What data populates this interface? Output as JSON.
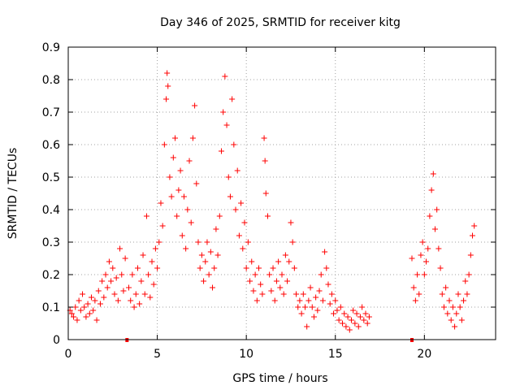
{
  "chart_data": {
    "type": "scatter",
    "title": "Day 346 of 2025, SRMTID for receiver kitg",
    "xlabel": "GPS time / hours",
    "ylabel": "SRMTID / TECUs",
    "xlim": [
      0,
      24
    ],
    "ylim": [
      0,
      0.9
    ],
    "xticks": [
      0,
      5,
      10,
      15,
      20
    ],
    "xtick_labels": [
      "0",
      "5",
      "10",
      "15",
      "20"
    ],
    "yticks": [
      0,
      0.1,
      0.2,
      0.3,
      0.4,
      0.5,
      0.6,
      0.7,
      0.8,
      0.9
    ],
    "ytick_labels": [
      "0",
      "0.1",
      "0.2",
      "0.3",
      "0.4",
      "0.5",
      "0.6",
      "0.7",
      "0.8",
      "0.9"
    ],
    "grid": true,
    "marker": "+",
    "color": "#ff0000",
    "gap_markers_x": [
      3.3,
      19.3
    ],
    "series": [
      {
        "name": "SRMTID",
        "points": [
          [
            0.1,
            0.09
          ],
          [
            0.2,
            0.08
          ],
          [
            0.3,
            0.07
          ],
          [
            0.4,
            0.1
          ],
          [
            0.5,
            0.06
          ],
          [
            0.6,
            0.12
          ],
          [
            0.7,
            0.09
          ],
          [
            0.8,
            0.14
          ],
          [
            0.9,
            0.1
          ],
          [
            1.0,
            0.07
          ],
          [
            1.1,
            0.11
          ],
          [
            1.2,
            0.08
          ],
          [
            1.3,
            0.13
          ],
          [
            1.4,
            0.09
          ],
          [
            1.5,
            0.12
          ],
          [
            1.6,
            0.06
          ],
          [
            1.7,
            0.15
          ],
          [
            1.8,
            0.11
          ],
          [
            1.9,
            0.18
          ],
          [
            2.0,
            0.13
          ],
          [
            2.1,
            0.2
          ],
          [
            2.2,
            0.16
          ],
          [
            2.3,
            0.24
          ],
          [
            2.4,
            0.18
          ],
          [
            2.5,
            0.22
          ],
          [
            2.6,
            0.14
          ],
          [
            2.7,
            0.19
          ],
          [
            2.8,
            0.12
          ],
          [
            2.9,
            0.28
          ],
          [
            3.0,
            0.2
          ],
          [
            3.1,
            0.15
          ],
          [
            3.2,
            0.25
          ],
          [
            3.4,
            0.16
          ],
          [
            3.5,
            0.12
          ],
          [
            3.6,
            0.2
          ],
          [
            3.7,
            0.1
          ],
          [
            3.8,
            0.14
          ],
          [
            3.9,
            0.22
          ],
          [
            4.0,
            0.11
          ],
          [
            4.1,
            0.18
          ],
          [
            4.2,
            0.26
          ],
          [
            4.3,
            0.14
          ],
          [
            4.4,
            0.38
          ],
          [
            4.5,
            0.2
          ],
          [
            4.6,
            0.13
          ],
          [
            4.7,
            0.24
          ],
          [
            4.8,
            0.17
          ],
          [
            4.9,
            0.28
          ],
          [
            5.0,
            0.22
          ],
          [
            5.1,
            0.3
          ],
          [
            5.2,
            0.42
          ],
          [
            5.3,
            0.35
          ],
          [
            5.4,
            0.6
          ],
          [
            5.5,
            0.74
          ],
          [
            5.55,
            0.82
          ],
          [
            5.6,
            0.78
          ],
          [
            5.7,
            0.5
          ],
          [
            5.8,
            0.44
          ],
          [
            5.9,
            0.56
          ],
          [
            6.0,
            0.62
          ],
          [
            6.1,
            0.38
          ],
          [
            6.2,
            0.46
          ],
          [
            6.3,
            0.52
          ],
          [
            6.4,
            0.32
          ],
          [
            6.5,
            0.44
          ],
          [
            6.6,
            0.28
          ],
          [
            6.7,
            0.4
          ],
          [
            6.8,
            0.55
          ],
          [
            6.9,
            0.36
          ],
          [
            7.0,
            0.62
          ],
          [
            7.1,
            0.72
          ],
          [
            7.2,
            0.48
          ],
          [
            7.3,
            0.3
          ],
          [
            7.4,
            0.22
          ],
          [
            7.5,
            0.26
          ],
          [
            7.6,
            0.18
          ],
          [
            7.7,
            0.24
          ],
          [
            7.8,
            0.3
          ],
          [
            7.9,
            0.2
          ],
          [
            8.0,
            0.27
          ],
          [
            8.1,
            0.16
          ],
          [
            8.2,
            0.22
          ],
          [
            8.3,
            0.34
          ],
          [
            8.4,
            0.26
          ],
          [
            8.5,
            0.38
          ],
          [
            8.6,
            0.58
          ],
          [
            8.7,
            0.7
          ],
          [
            8.8,
            0.81
          ],
          [
            8.9,
            0.66
          ],
          [
            9.0,
            0.5
          ],
          [
            9.1,
            0.44
          ],
          [
            9.2,
            0.74
          ],
          [
            9.3,
            0.6
          ],
          [
            9.4,
            0.4
          ],
          [
            9.5,
            0.52
          ],
          [
            9.6,
            0.32
          ],
          [
            9.7,
            0.42
          ],
          [
            9.8,
            0.28
          ],
          [
            9.9,
            0.36
          ],
          [
            10.0,
            0.22
          ],
          [
            10.1,
            0.3
          ],
          [
            10.2,
            0.18
          ],
          [
            10.3,
            0.24
          ],
          [
            10.4,
            0.15
          ],
          [
            10.5,
            0.2
          ],
          [
            10.6,
            0.12
          ],
          [
            10.7,
            0.22
          ],
          [
            10.8,
            0.17
          ],
          [
            10.9,
            0.14
          ],
          [
            11.0,
            0.62
          ],
          [
            11.05,
            0.55
          ],
          [
            11.1,
            0.45
          ],
          [
            11.2,
            0.38
          ],
          [
            11.3,
            0.2
          ],
          [
            11.4,
            0.15
          ],
          [
            11.5,
            0.22
          ],
          [
            11.6,
            0.12
          ],
          [
            11.7,
            0.18
          ],
          [
            11.8,
            0.24
          ],
          [
            11.9,
            0.16
          ],
          [
            12.0,
            0.2
          ],
          [
            12.1,
            0.14
          ],
          [
            12.2,
            0.26
          ],
          [
            12.3,
            0.18
          ],
          [
            12.4,
            0.24
          ],
          [
            12.5,
            0.36
          ],
          [
            12.6,
            0.3
          ],
          [
            12.7,
            0.22
          ],
          [
            12.8,
            0.14
          ],
          [
            12.9,
            0.1
          ],
          [
            13.0,
            0.12
          ],
          [
            13.1,
            0.08
          ],
          [
            13.2,
            0.14
          ],
          [
            13.3,
            0.1
          ],
          [
            13.4,
            0.04
          ],
          [
            13.5,
            0.12
          ],
          [
            13.6,
            0.16
          ],
          [
            13.7,
            0.1
          ],
          [
            13.8,
            0.07
          ],
          [
            13.9,
            0.13
          ],
          [
            14.0,
            0.09
          ],
          [
            14.1,
            0.15
          ],
          [
            14.2,
            0.2
          ],
          [
            14.3,
            0.12
          ],
          [
            14.4,
            0.27
          ],
          [
            14.5,
            0.22
          ],
          [
            14.6,
            0.17
          ],
          [
            14.7,
            0.11
          ],
          [
            14.8,
            0.14
          ],
          [
            14.9,
            0.08
          ],
          [
            15.0,
            0.12
          ],
          [
            15.1,
            0.09
          ],
          [
            15.2,
            0.06
          ],
          [
            15.3,
            0.1
          ],
          [
            15.4,
            0.05
          ],
          [
            15.5,
            0.08
          ],
          [
            15.6,
            0.04
          ],
          [
            15.7,
            0.07
          ],
          [
            15.8,
            0.03
          ],
          [
            15.9,
            0.06
          ],
          [
            16.0,
            0.09
          ],
          [
            16.1,
            0.05
          ],
          [
            16.2,
            0.08
          ],
          [
            16.3,
            0.04
          ],
          [
            16.4,
            0.07
          ],
          [
            16.5,
            0.1
          ],
          [
            16.6,
            0.06
          ],
          [
            16.7,
            0.08
          ],
          [
            16.8,
            0.05
          ],
          [
            16.9,
            0.07
          ],
          [
            19.3,
            0.25
          ],
          [
            19.4,
            0.16
          ],
          [
            19.5,
            0.12
          ],
          [
            19.6,
            0.2
          ],
          [
            19.7,
            0.14
          ],
          [
            19.8,
            0.26
          ],
          [
            19.9,
            0.3
          ],
          [
            20.0,
            0.2
          ],
          [
            20.1,
            0.24
          ],
          [
            20.2,
            0.28
          ],
          [
            20.3,
            0.38
          ],
          [
            20.4,
            0.46
          ],
          [
            20.5,
            0.51
          ],
          [
            20.6,
            0.34
          ],
          [
            20.7,
            0.4
          ],
          [
            20.8,
            0.28
          ],
          [
            20.9,
            0.22
          ],
          [
            21.0,
            0.14
          ],
          [
            21.1,
            0.1
          ],
          [
            21.2,
            0.16
          ],
          [
            21.3,
            0.08
          ],
          [
            21.4,
            0.12
          ],
          [
            21.5,
            0.06
          ],
          [
            21.6,
            0.1
          ],
          [
            21.7,
            0.04
          ],
          [
            21.8,
            0.08
          ],
          [
            21.9,
            0.14
          ],
          [
            22.0,
            0.1
          ],
          [
            22.1,
            0.06
          ],
          [
            22.2,
            0.12
          ],
          [
            22.3,
            0.18
          ],
          [
            22.4,
            0.14
          ],
          [
            22.5,
            0.2
          ],
          [
            22.6,
            0.26
          ],
          [
            22.7,
            0.32
          ],
          [
            22.8,
            0.35
          ]
        ]
      }
    ]
  }
}
